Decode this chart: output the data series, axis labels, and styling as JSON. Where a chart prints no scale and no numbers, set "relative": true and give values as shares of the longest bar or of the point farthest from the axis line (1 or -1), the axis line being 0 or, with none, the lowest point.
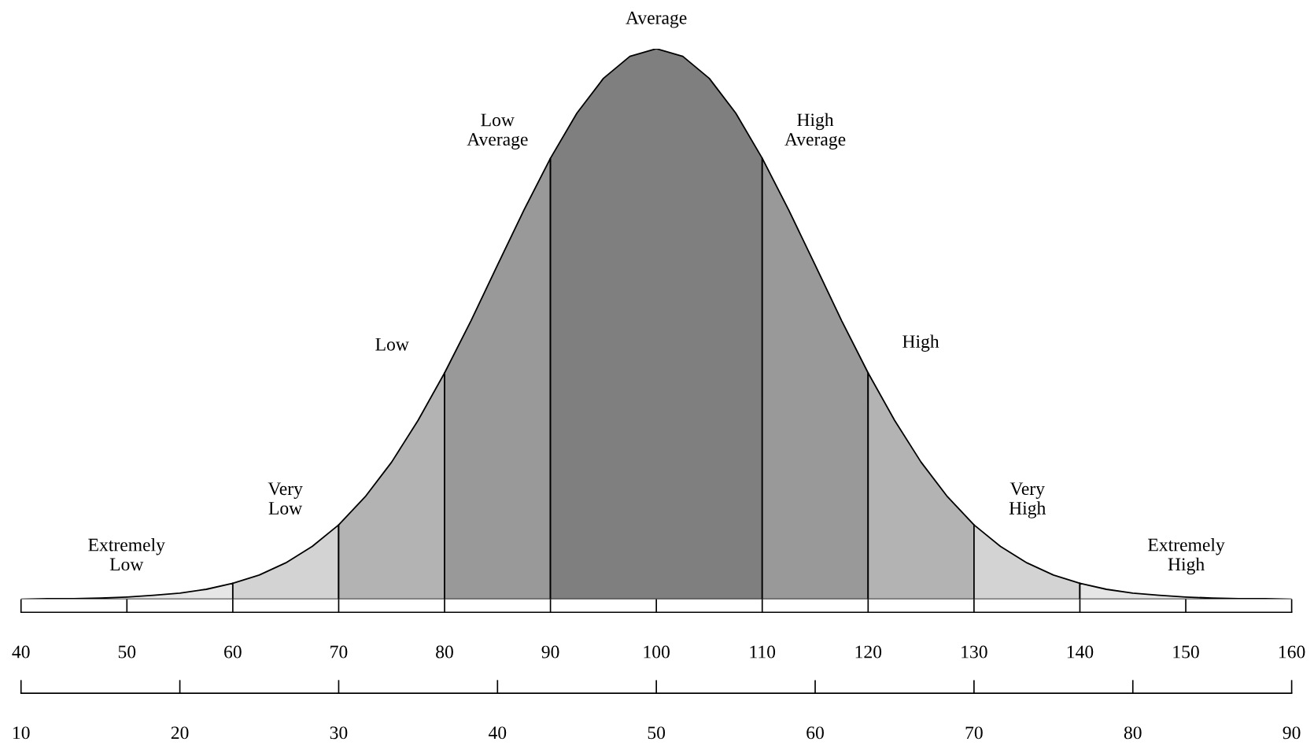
{
  "chart_data": {
    "type": "area",
    "relative": true,
    "grid": false,
    "xlim": [
      40,
      160
    ],
    "xticks": [
      40,
      50,
      60,
      70,
      80,
      90,
      100,
      110,
      120,
      130,
      140,
      150,
      160
    ],
    "x2lim": [
      10,
      90
    ],
    "x2ticks": [
      10,
      20,
      30,
      40,
      50,
      60,
      70,
      80,
      90
    ],
    "series": [
      {
        "color": "#e6e6e6",
        "x": [
          40,
          42.5,
          45,
          47.5,
          50,
          52.5,
          55,
          57.5,
          60
        ],
        "values": [
          0.0,
          0.001,
          0.001,
          0.002,
          0.004,
          0.007,
          0.011,
          0.018,
          0.029
        ]
      },
      {
        "color": "#d3d3d3",
        "x": [
          60,
          62.5,
          65,
          67.5,
          70
        ],
        "values": [
          0.029,
          0.044,
          0.066,
          0.096,
          0.135
        ]
      },
      {
        "color": "#b3b3b3",
        "x": [
          70,
          72.5,
          75,
          77.5,
          80
        ],
        "values": [
          0.135,
          0.186,
          0.249,
          0.325,
          0.411
        ]
      },
      {
        "color": "#999999",
        "x": [
          80,
          82.5,
          85,
          87.5,
          90
        ],
        "values": [
          0.411,
          0.506,
          0.607,
          0.707,
          0.801
        ]
      },
      {
        "color": "#7f7f7f",
        "x": [
          90,
          92.5,
          95,
          97.5,
          100,
          102.5,
          105,
          107.5,
          110
        ],
        "values": [
          0.801,
          0.883,
          0.946,
          0.986,
          1,
          0.986,
          0.946,
          0.883,
          0.801
        ]
      },
      {
        "color": "#999999",
        "x": [
          110,
          112.5,
          115,
          117.5,
          120
        ],
        "values": [
          0.801,
          0.707,
          0.607,
          0.506,
          0.411
        ]
      },
      {
        "color": "#b3b3b3",
        "x": [
          120,
          122.5,
          125,
          127.5,
          130
        ],
        "values": [
          0.411,
          0.325,
          0.249,
          0.186,
          0.135
        ]
      },
      {
        "color": "#d3d3d3",
        "x": [
          130,
          132.5,
          135,
          137.5,
          140
        ],
        "values": [
          0.135,
          0.096,
          0.066,
          0.044,
          0.029
        ]
      },
      {
        "color": "#e6e6e6",
        "x": [
          140,
          142.5,
          145,
          147.5,
          150,
          152.5,
          155,
          157.5,
          160
        ],
        "values": [
          0.029,
          0.018,
          0.011,
          0.007,
          0.004,
          0.002,
          0.001,
          0.001,
          0.0
        ]
      }
    ],
    "annotations": [
      "Average",
      "Low\nAverage",
      "High\nAverage",
      "Low",
      "High",
      "Very\nLow",
      "Very\nHigh",
      "Extremely\nLow",
      "Extremely\nHigh"
    ]
  }
}
